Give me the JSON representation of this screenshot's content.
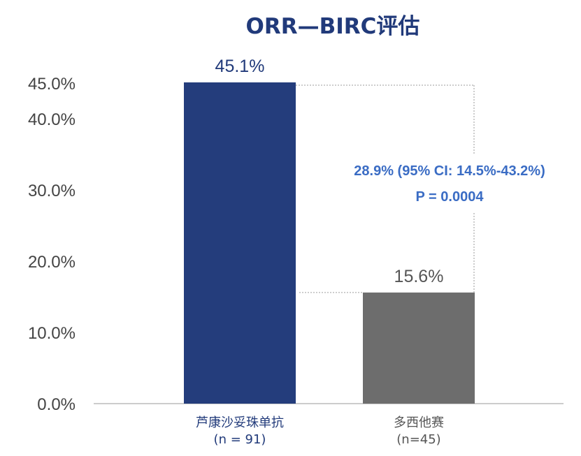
{
  "chart_data": {
    "type": "bar",
    "title": "ORR—BIRC评估",
    "categories": [
      {
        "name": "芦康沙妥珠单抗",
        "n": "(n = 91)"
      },
      {
        "name": "多西他赛",
        "n": "(n=45)"
      }
    ],
    "values": [
      45.1,
      15.6
    ],
    "data_labels": [
      "45.1%",
      "15.6%"
    ],
    "y_ticks": [
      {
        "value": 0,
        "label": "0.0%"
      },
      {
        "value": 10,
        "label": "10.0%"
      },
      {
        "value": 20,
        "label": "20.0%"
      },
      {
        "value": 30,
        "label": "30.0%"
      },
      {
        "value": 40,
        "label": "40.0%"
      },
      {
        "value": 45,
        "label": "45.0%"
      }
    ],
    "ylim": [
      0,
      45
    ],
    "xlabel": "",
    "ylabel": "",
    "grid": false,
    "legend": "none",
    "annotation": {
      "line1": "28.9% (95% CI: 14.5%-43.2%)",
      "line2": "P = 0.0004"
    },
    "colors": {
      "bar_1": "#243d7c",
      "bar_2": "#6d6d6d",
      "title": "#213a7a",
      "annotation": "#3a6cc4",
      "label_1": "#213a7a",
      "label_2": "#555555",
      "cat_1": "#213a7a",
      "cat_2": "#555555",
      "axis": "#bbbbbb",
      "bracket": "#b0b0b0"
    }
  }
}
